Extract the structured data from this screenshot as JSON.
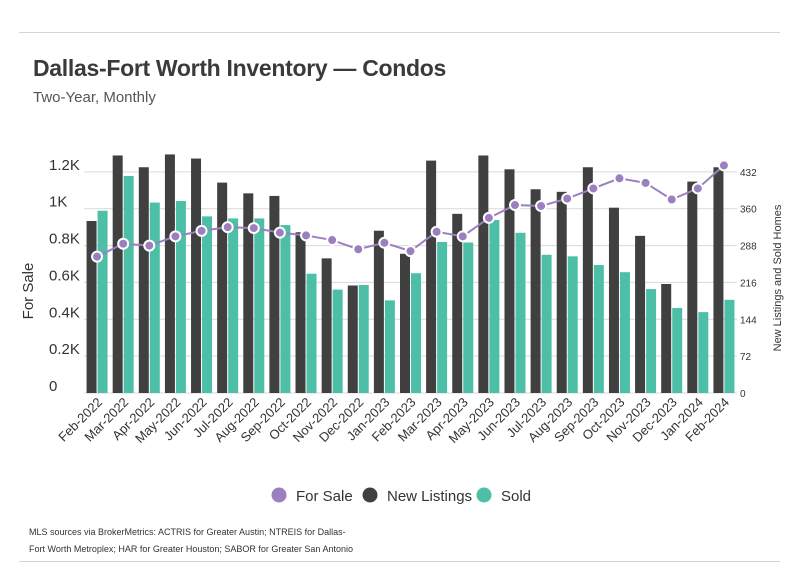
{
  "header": {
    "title": "Dallas-Fort Worth Inventory — Condos",
    "subtitle": "Two-Year, Monthly"
  },
  "footer": {
    "source": "MLS sources via BrokerMetrics: ACTRIS for Greater Austin; NTREIS for Dallas-Fort Worth Metroplex; HAR for Greater Houston; SABOR for Greater San Antonio"
  },
  "colors": {
    "for_sale": "#9b7fbf",
    "new_listings": "#404040",
    "sold": "#4dbfa7",
    "grid": "#d9d9d9"
  },
  "chart_data": {
    "type": "bar",
    "title": "Dallas-Fort Worth Inventory — Condos",
    "subtitle": "Two-Year, Monthly",
    "ylabel": "For Sale",
    "y2label": "New Listings and Sold Homes",
    "ylim": [
      0,
      1400
    ],
    "y2lim": [
      0,
      504
    ],
    "yticks": [
      "0",
      "0.2K",
      "0.4K",
      "0.6K",
      "0.8K",
      "1K",
      "1.2K"
    ],
    "y2ticks": [
      "0",
      "72",
      "144",
      "216",
      "288",
      "360",
      "432"
    ],
    "grid": true,
    "legend_position": "bottom",
    "categories": [
      "Feb-2022",
      "Mar-2022",
      "Apr-2022",
      "May-2022",
      "Jun-2022",
      "Jul-2022",
      "Aug-2022",
      "Sep-2022",
      "Oct-2022",
      "Nov-2022",
      "Dec-2022",
      "Jan-2023",
      "Feb-2023",
      "Mar-2023",
      "Apr-2023",
      "May-2023",
      "Jun-2023",
      "Jul-2023",
      "Aug-2023",
      "Sep-2023",
      "Oct-2023",
      "Nov-2023",
      "Dec-2023",
      "Jan-2024",
      "Feb-2024"
    ],
    "series": [
      {
        "name": "For Sale",
        "kind": "line",
        "axis": "left",
        "values": [
          740,
          810,
          800,
          850,
          880,
          900,
          895,
          870,
          855,
          830,
          780,
          815,
          770,
          875,
          850,
          950,
          1020,
          1015,
          1055,
          1110,
          1165,
          1140,
          1050,
          1110,
          1235
        ]
      },
      {
        "name": "New Listings",
        "kind": "bar",
        "axis": "right",
        "values": [
          336,
          464,
          441,
          466,
          458,
          411,
          390,
          385,
          314,
          263,
          210,
          317,
          272,
          454,
          350,
          464,
          437,
          398,
          393,
          441,
          362,
          307,
          213,
          413,
          441
        ]
      },
      {
        "name": "Sold",
        "kind": "bar",
        "axis": "right",
        "values": [
          356,
          424,
          372,
          375,
          345,
          341,
          341,
          328,
          233,
          202,
          211,
          181,
          234,
          295,
          294,
          338,
          313,
          270,
          267,
          250,
          236,
          203,
          166,
          158,
          182
        ]
      }
    ]
  }
}
